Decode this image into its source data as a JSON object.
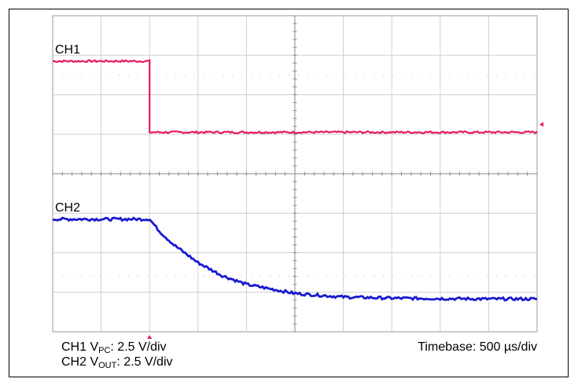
{
  "chart_data": {
    "type": "line",
    "title": "",
    "xlabel": "",
    "ylabel": "",
    "x_unit_per_div": "500 µs",
    "x_divisions": 10,
    "y_divisions": 8,
    "grid": true,
    "series": [
      {
        "name": "CH1",
        "color": "#e8185f",
        "unit": "V/div",
        "scale": 2.5,
        "description_level_divisions": "relative to screen",
        "x": [
          0,
          2.0,
          2.0,
          10
        ],
        "y": [
          6.85,
          6.85,
          5.05,
          5.05
        ]
      },
      {
        "name": "CH2",
        "color": "#1a1acf",
        "unit": "V/div",
        "scale": 2.5,
        "x": [
          0,
          2.0,
          2.2,
          2.5,
          3.0,
          3.5,
          4.0,
          5.0,
          6.0,
          7.0,
          8.0,
          9.0,
          10
        ],
        "y": [
          2.85,
          2.85,
          2.55,
          2.2,
          1.75,
          1.42,
          1.2,
          0.97,
          0.88,
          0.85,
          0.84,
          0.83,
          0.83
        ]
      }
    ]
  },
  "labels": {
    "ch1": "CH1",
    "ch2": "CH2"
  },
  "caption": {
    "line1_prefix": "CH1 V",
    "line1_sub": "PC",
    "line1_suffix": ": 2.5 V/div",
    "line2_prefix": "CH2 V",
    "line2_sub": "OUT",
    "line2_suffix": ": 2.5 V/div",
    "timebase": "Timebase: 500 µs/div"
  },
  "markers": {
    "trigger_color": "#e8185f"
  }
}
